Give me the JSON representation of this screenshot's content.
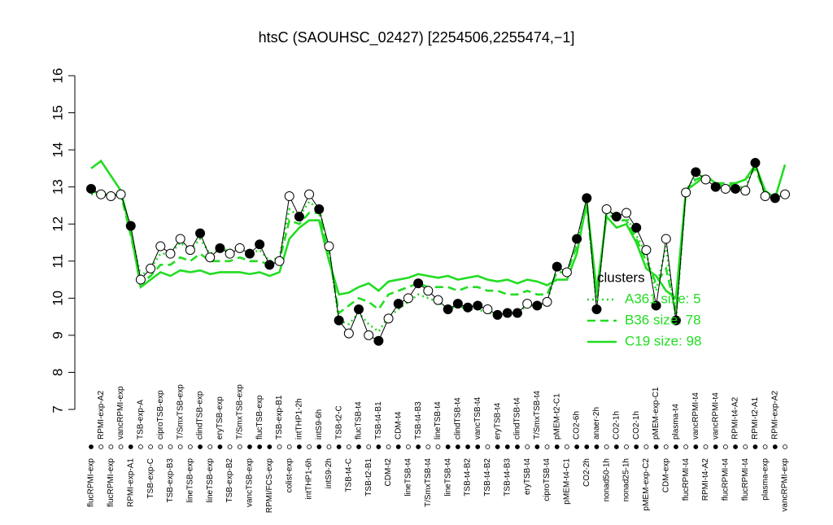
{
  "chart_data": {
    "type": "line",
    "title": "htsC (SAOUHSC_02427) [2254506,2255474,−1]",
    "ylim": [
      7,
      16
    ],
    "yticks": [
      7,
      8,
      9,
      10,
      11,
      12,
      13,
      14,
      15,
      16
    ],
    "categories": [
      "flucRPMI-exp",
      "RPMI-exp-A2",
      "flucRPMI-exp",
      "vancRPMI-exp",
      "RPMI-exp-A1",
      "TSB-exp-A",
      "TSB-exp-C",
      "ciproTSB-exp",
      "TSB-exp-B3",
      "T/SmxTSB-exp",
      "lineTSB-exp",
      "clindTSB-exp",
      "lineTSB-exp",
      "eryTSB-exp",
      "TSB-exp-B2",
      "T/SmxTSB-exp",
      "vancTSB-exp",
      "flucTSB-exp",
      "RPMI/FCS-exp",
      "TSB-exp-B1",
      "colist-exp",
      "intTHP1-2h",
      "intTHP1-6h",
      "intS9-6h",
      "intS9-2h",
      "TSB-t2-C",
      "TSB-t4-C",
      "flucTSB-t4",
      "TSB-t2-B1",
      "TSB-t4-B1",
      "CDM-t2",
      "CDM-t4",
      "lineTSB-t4",
      "TSB-t4-B3",
      "T/SmxTSB-t4",
      "lineTSB-t4",
      "lineTSB-t4",
      "clindTSB-t4",
      "TSB-t4-B2",
      "vancTSB-t4",
      "TSB-t4-B2",
      "eryTSB-t4",
      "TSB-t4-B3",
      "clindTSB-t4",
      "eryTSB-t4",
      "T/SmxTSB-t4",
      "ciproTSB-t4",
      "pMEM-t2-C1",
      "pMEM-t4-C1",
      "CO2-6h",
      "CO2-2h",
      "anaer-2h",
      "nonad50-1h",
      "CO2-1h",
      "nonad25-1h",
      "CO2-1h",
      "pMEM-exp-C2",
      "pMEM-exp-C1",
      "CDM-exp",
      "plasma-t4",
      "flucRPMI-t4",
      "vancRPMI-t4",
      "RPMI-t4-A2",
      "vancRPMI-t4",
      "flucRPMI-t4",
      "RPMI-t4-A2",
      "flucRPMI-t4",
      "RPMI-t2-A1",
      "plasma-exp",
      "RPMI-exp-A2",
      "vancRPMI-exp"
    ],
    "values": [
      12.95,
      12.8,
      12.75,
      12.8,
      11.95,
      10.5,
      10.8,
      11.4,
      11.2,
      11.6,
      11.3,
      11.75,
      11.1,
      11.35,
      11.2,
      11.35,
      11.2,
      11.45,
      10.9,
      11.0,
      12.75,
      12.2,
      12.8,
      12.4,
      11.4,
      9.4,
      9.05,
      9.7,
      9.0,
      8.85,
      9.45,
      9.85,
      10.0,
      10.4,
      10.2,
      9.95,
      9.7,
      9.85,
      9.75,
      9.8,
      9.7,
      9.55,
      9.6,
      9.6,
      9.85,
      9.8,
      9.9,
      10.85,
      10.7,
      11.6,
      12.7,
      9.7,
      12.4,
      12.2,
      12.3,
      11.9,
      11.3,
      9.8,
      11.6,
      9.4,
      12.85,
      13.4,
      13.2,
      13.0,
      12.95,
      12.95,
      12.9,
      13.65,
      12.75,
      12.7,
      12.8
    ],
    "filled": [
      true,
      false,
      false,
      false,
      true,
      false,
      false,
      false,
      false,
      false,
      false,
      true,
      false,
      true,
      false,
      false,
      true,
      true,
      true,
      false,
      false,
      true,
      false,
      true,
      false,
      true,
      false,
      true,
      false,
      true,
      false,
      true,
      false,
      true,
      false,
      false,
      true,
      true,
      true,
      true,
      false,
      true,
      true,
      true,
      false,
      true,
      false,
      true,
      false,
      true,
      true,
      true,
      false,
      true,
      false,
      true,
      false,
      true,
      false,
      true,
      false,
      true,
      false,
      true,
      false,
      true,
      false,
      true,
      false,
      true,
      false
    ],
    "legend_title": "clusters",
    "series": [
      {
        "name": "A361 size: 5",
        "color": "#22dd22",
        "dash": "dotted",
        "values": [
          12.8,
          12.8,
          12.8,
          12.8,
          11.8,
          10.6,
          10.8,
          11.2,
          11.2,
          11.5,
          11.3,
          11.6,
          11.2,
          11.3,
          11.3,
          11.4,
          11.2,
          11.3,
          11.0,
          11.1,
          12.4,
          12.2,
          12.6,
          12.4,
          11.3,
          9.4,
          9.3,
          9.6,
          9.3,
          9.1,
          9.5,
          9.7,
          9.9,
          10.1,
          10.0,
          9.9,
          9.7,
          9.8,
          9.7,
          9.7,
          9.6,
          9.6,
          9.6,
          9.6,
          9.8,
          9.8,
          9.9,
          10.8,
          10.7,
          11.5,
          12.6,
          9.8,
          12.4,
          12.2,
          12.2,
          11.7,
          11.2,
          10.2,
          11.4,
          9.4,
          12.9,
          13.3,
          13.3,
          13.0,
          13.0,
          13.0,
          13.0,
          13.6,
          12.8,
          12.7,
          12.8
        ]
      },
      {
        "name": "B36 size: 78",
        "color": "#22dd22",
        "dash": "dashed",
        "values": [
          12.9,
          12.8,
          12.8,
          12.8,
          11.7,
          10.4,
          10.6,
          10.9,
          10.9,
          11.1,
          11.0,
          11.2,
          11.0,
          11.0,
          11.0,
          11.1,
          11.0,
          11.0,
          10.9,
          11.0,
          12.1,
          12.0,
          12.3,
          12.3,
          11.2,
          9.6,
          9.8,
          10.0,
          9.9,
          9.7,
          10.1,
          10.2,
          10.3,
          10.4,
          10.3,
          10.3,
          10.3,
          10.2,
          10.3,
          10.3,
          10.2,
          10.2,
          10.1,
          10.1,
          10.2,
          10.1,
          10.1,
          10.7,
          10.7,
          11.4,
          12.5,
          10.0,
          12.3,
          12.1,
          12.1,
          11.6,
          11.0,
          10.4,
          10.8,
          9.6,
          12.9,
          13.2,
          13.3,
          13.1,
          13.1,
          13.1,
          13.2,
          13.5,
          12.8,
          12.7,
          12.8
        ]
      },
      {
        "name": "C19 size: 98",
        "color": "#22dd22",
        "dash": "solid",
        "values": [
          13.5,
          13.7,
          13.3,
          12.9,
          11.8,
          10.3,
          10.5,
          10.7,
          10.6,
          10.75,
          10.7,
          10.75,
          10.65,
          10.7,
          10.7,
          10.7,
          10.65,
          10.7,
          10.6,
          10.7,
          11.6,
          11.9,
          12.1,
          12.1,
          11.0,
          10.1,
          10.15,
          10.3,
          10.4,
          10.2,
          10.45,
          10.5,
          10.55,
          10.65,
          10.6,
          10.55,
          10.6,
          10.5,
          10.55,
          10.6,
          10.5,
          10.45,
          10.5,
          10.4,
          10.5,
          10.45,
          10.35,
          10.5,
          10.5,
          11.2,
          12.6,
          10.2,
          12.2,
          11.9,
          12.0,
          11.5,
          10.8,
          10.6,
          10.2,
          10.0,
          12.9,
          13.1,
          13.3,
          13.1,
          13.0,
          13.1,
          13.2,
          13.6,
          12.9,
          12.7,
          13.6
        ]
      }
    ]
  }
}
